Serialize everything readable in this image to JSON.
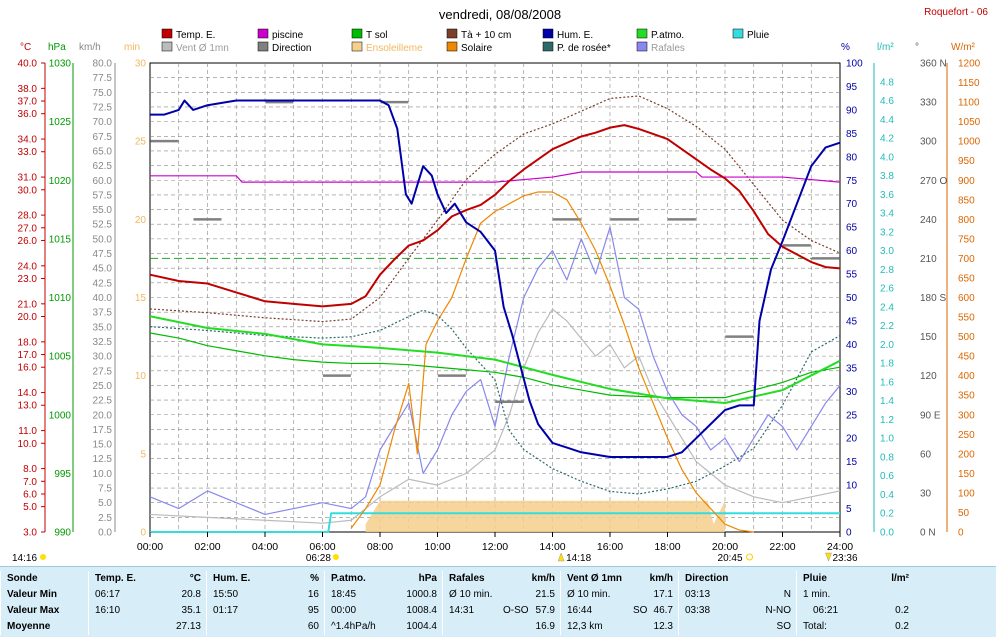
{
  "header": {
    "title": "vendredi, 08/08/2008",
    "station": "Roquefort - 06"
  },
  "legend": [
    {
      "label": "Temp. E.",
      "color": "#c00000"
    },
    {
      "label": "piscine",
      "color": "#cc00cc"
    },
    {
      "label": "T sol",
      "color": "#00bb00"
    },
    {
      "label": "Tà + 10 cm",
      "color": "#7b3f2a"
    },
    {
      "label": "Hum. E.",
      "color": "#0000aa"
    },
    {
      "label": "P.atmo.",
      "color": "#22dd22"
    },
    {
      "label": "Pluie",
      "color": "#33dddd"
    },
    {
      "label": "Vent Ø 1mn",
      "color": "#bbbbbb"
    },
    {
      "label": "Direction",
      "color": "#808080"
    },
    {
      "label": "Ensoleilleme",
      "color": "#f5cf8c"
    },
    {
      "label": "Solaire",
      "color": "#ee8800"
    },
    {
      "label": "P. de rosée*",
      "color": "#2d6a6a"
    },
    {
      "label": "Rafales",
      "color": "#8888ee"
    }
  ],
  "axis_units": {
    "temp": "°C",
    "press": "hPa",
    "wind": "km/h",
    "sun": "min",
    "hum": "%",
    "rain": "l/m²",
    "dir": "°",
    "solar": "W/m²"
  },
  "axes": {
    "temp_ticks": [
      "40.0",
      "38.0",
      "37.0",
      "36.0",
      "34.0",
      "33.0",
      "31.0",
      "30.0",
      "28.0",
      "27.0",
      "26.0",
      "24.0",
      "23.0",
      "21.0",
      "20.0",
      "18.0",
      "17.0",
      "16.0",
      "14.0",
      "13.0",
      "11.0",
      "10.0",
      "8.0",
      "7.0",
      "6.0",
      "5.0",
      "3.0"
    ],
    "press_ticks": [
      "1030",
      "1025",
      "1020",
      "1015",
      "1010",
      "1005",
      "1000",
      "995",
      "990"
    ],
    "wind_ticks": [
      "80.0",
      "77.5",
      "75.0",
      "72.5",
      "70.0",
      "67.5",
      "65.0",
      "62.5",
      "60.0",
      "57.5",
      "55.0",
      "52.5",
      "50.0",
      "47.5",
      "45.0",
      "42.5",
      "40.0",
      "37.5",
      "35.0",
      "32.5",
      "30.0",
      "27.5",
      "25.0",
      "22.5",
      "20.0",
      "17.5",
      "15.0",
      "12.5",
      "10.0",
      "7.5",
      "5.0",
      "2.5",
      "0.0"
    ],
    "sun_ticks": [
      "30",
      "25",
      "20",
      "15",
      "10",
      "5",
      "0"
    ],
    "hum_ticks": [
      "100",
      "95",
      "90",
      "85",
      "80",
      "75",
      "70",
      "65",
      "60",
      "55",
      "50",
      "45",
      "40",
      "35",
      "30",
      "25",
      "20",
      "15",
      "10",
      "5",
      "0"
    ],
    "rain_ticks": [
      "4.8",
      "4.6",
      "4.4",
      "4.2",
      "4.0",
      "3.8",
      "3.6",
      "3.4",
      "3.2",
      "3.0",
      "2.8",
      "2.6",
      "2.4",
      "2.2",
      "2.0",
      "1.8",
      "1.6",
      "1.4",
      "1.2",
      "1.0",
      "0.8",
      "0.6",
      "0.4",
      "0.2",
      "0.0"
    ],
    "dir_ticks": [
      "360 N",
      "330",
      "300",
      "270 O",
      "240",
      "210",
      "180 S",
      "150",
      "120",
      "90 E",
      "60",
      "30",
      "0 N"
    ],
    "solar_ticks": [
      "1200",
      "1150",
      "1100",
      "1050",
      "1000",
      "950",
      "900",
      "850",
      "800",
      "750",
      "700",
      "650",
      "600",
      "550",
      "500",
      "450",
      "400",
      "350",
      "300",
      "250",
      "200",
      "150",
      "100",
      "50",
      "0"
    ],
    "x_ticks": [
      "00:00",
      "02:00",
      "04:00",
      "06:00",
      "08:00",
      "10:00",
      "12:00",
      "14:00",
      "16:00",
      "18:00",
      "20:00",
      "22:00",
      "24:00"
    ]
  },
  "sun_events": {
    "sunrise": "06:28",
    "sunset": "20:45",
    "moonrise": "14:16",
    "moonset": "23:36",
    "transit": "14:18"
  },
  "chart_data": {
    "type": "line",
    "title": "vendredi, 08/08/2008",
    "x_unit": "hours",
    "xlim": [
      0,
      24
    ],
    "series": [
      {
        "name": "Temp. E.",
        "unit": "°C",
        "color": "#c00000",
        "x": [
          0,
          1,
          2,
          3,
          4,
          5,
          6,
          7,
          7.5,
          8,
          8.5,
          9,
          9.5,
          10,
          10.5,
          11,
          11.5,
          12,
          12.5,
          13,
          13.5,
          14,
          14.5,
          15,
          15.5,
          16,
          16.5,
          17,
          17.5,
          18,
          18.5,
          19,
          19.5,
          20,
          20.5,
          21,
          21.5,
          22,
          22.5,
          23,
          23.5,
          24
        ],
        "y": [
          23.3,
          22.8,
          22.6,
          21.9,
          21.2,
          21.0,
          20.8,
          21.0,
          21.6,
          23.3,
          24.5,
          25.6,
          26.0,
          26.8,
          27.9,
          28.4,
          28.8,
          29.6,
          30.7,
          31.6,
          32.4,
          33.2,
          33.7,
          34.2,
          34.5,
          34.9,
          35.1,
          34.8,
          34.4,
          34.0,
          33.2,
          32.4,
          31.6,
          30.9,
          29.9,
          28.3,
          26.5,
          25.5,
          24.9,
          24.3,
          23.9,
          23.8
        ]
      },
      {
        "name": "piscine",
        "unit": "°C",
        "color": "#cc00cc",
        "x": [
          0,
          3,
          3.2,
          8,
          10,
          12,
          14,
          15,
          19,
          19.2,
          22,
          24
        ],
        "y": [
          31.1,
          31.1,
          30.6,
          30.6,
          30.6,
          30.6,
          31.0,
          31.4,
          31.4,
          31.0,
          31.0,
          30.6
        ]
      },
      {
        "name": "T sol",
        "unit": "°C",
        "color": "#00bb00",
        "x": [
          0,
          1,
          2,
          3,
          4,
          5,
          6,
          7,
          8,
          9,
          10,
          11,
          12,
          13,
          14,
          15,
          16,
          17,
          18,
          19,
          20,
          21,
          22,
          23,
          24
        ],
        "y": [
          18.7,
          18.3,
          17.7,
          17.3,
          16.9,
          16.6,
          16.4,
          16.3,
          16.3,
          16.2,
          16.0,
          15.8,
          15.6,
          15.2,
          14.6,
          14.2,
          13.8,
          13.7,
          13.6,
          13.6,
          13.6,
          14.2,
          14.8,
          15.6,
          16.0
        ]
      },
      {
        "name": "Tà + 10 cm",
        "unit": "°C",
        "color": "#7b3f2a",
        "x": [
          0,
          2,
          4,
          6,
          7,
          8,
          9,
          10,
          11,
          12,
          13,
          14,
          15,
          16,
          17,
          18,
          19,
          20,
          21,
          22,
          23,
          24
        ],
        "y": [
          20.6,
          20.3,
          19.9,
          19.6,
          19.8,
          21.5,
          24.6,
          27.6,
          30.8,
          32.8,
          34.4,
          35.2,
          36.2,
          37.2,
          37.4,
          36.4,
          35.0,
          33.2,
          30.4,
          27.6,
          26.0,
          25.0
        ]
      },
      {
        "name": "Hum. E.",
        "unit": "%",
        "color": "#0000aa",
        "x": [
          0,
          0.5,
          1,
          1.2,
          1.5,
          2,
          3,
          4,
          5,
          6,
          7,
          8,
          8.3,
          8.6,
          8.9,
          9.1,
          9.5,
          9.8,
          10,
          10.3,
          10.6,
          11,
          11.5,
          12,
          12.3,
          12.6,
          12.9,
          13.2,
          13.5,
          14,
          14.5,
          15,
          16,
          17,
          18,
          18.5,
          19,
          19.5,
          20,
          20.5,
          21,
          21.2,
          21.6,
          22,
          22.5,
          23,
          23.5,
          24
        ],
        "y": [
          89,
          89,
          90,
          92,
          90,
          91,
          92,
          92,
          92,
          92,
          92,
          92,
          91,
          86,
          72,
          70,
          78,
          76,
          72,
          68,
          70,
          66,
          64,
          60,
          48,
          42,
          35,
          28,
          23,
          19,
          18,
          17,
          16,
          16,
          16,
          17,
          20,
          23,
          26,
          27,
          27,
          45,
          56,
          62,
          70,
          78,
          82,
          83
        ]
      },
      {
        "name": "P.atmo.",
        "unit": "hPa",
        "color": "#22dd22",
        "x": [
          0,
          2,
          4,
          6,
          8,
          10,
          12,
          14,
          16,
          18,
          20,
          22,
          24
        ],
        "y": [
          1008.4,
          1007.4,
          1006.9,
          1006.0,
          1005.7,
          1005.3,
          1004.7,
          1003.4,
          1002.2,
          1001.4,
          1001.0,
          1002.1,
          1004.6
        ]
      },
      {
        "name": "P. de rosée*",
        "unit": "°C",
        "color": "#2d6a6a",
        "x": [
          0,
          2,
          4,
          6,
          7,
          8,
          9,
          9.5,
          10,
          10.5,
          11,
          12,
          12.5,
          13,
          14,
          15,
          16,
          17,
          18,
          19,
          20,
          21,
          22,
          23,
          24
        ],
        "y": [
          19.2,
          18.9,
          18.5,
          18.3,
          18.4,
          18.9,
          20.0,
          20.5,
          20.1,
          19.0,
          17.5,
          15.0,
          11.0,
          9.5,
          8.0,
          7.0,
          6.2,
          6.0,
          6.4,
          7.0,
          8.2,
          9.6,
          13.0,
          17.2,
          18.5
        ]
      },
      {
        "name": "Solaire",
        "unit": "W/m²",
        "color": "#ee8800",
        "x": [
          7,
          7.5,
          8,
          8.5,
          9,
          9.3,
          9.6,
          10,
          10.5,
          11,
          11.5,
          12,
          12.5,
          13,
          13.5,
          14,
          14.5,
          15,
          15.5,
          16,
          16.5,
          17,
          17.5,
          18,
          18.5,
          19,
          19.5,
          20,
          20.5,
          21
        ],
        "y": [
          10,
          60,
          120,
          260,
          380,
          200,
          480,
          540,
          600,
          700,
          790,
          820,
          840,
          860,
          870,
          870,
          850,
          790,
          720,
          630,
          530,
          420,
          330,
          240,
          160,
          100,
          60,
          20,
          5,
          0
        ]
      },
      {
        "name": "Rafales",
        "unit": "km/h",
        "color": "#8888ee",
        "x": [
          0,
          1,
          2,
          3,
          4,
          5,
          6,
          7,
          7.5,
          8,
          8.5,
          9,
          9.5,
          10,
          10.5,
          11,
          11.5,
          12,
          12.5,
          13,
          13.5,
          14,
          14.5,
          15,
          15.5,
          16,
          16.5,
          17,
          17.5,
          18,
          18.5,
          19,
          19.5,
          20,
          20.5,
          21,
          21.5,
          22,
          22.5,
          23,
          23.5,
          24
        ],
        "y": [
          6,
          4,
          7,
          5,
          3,
          4,
          5,
          4,
          6,
          14,
          18,
          22,
          10,
          14,
          20,
          24,
          26,
          18,
          30,
          40,
          45,
          48,
          43,
          50,
          44,
          52,
          40,
          38,
          30,
          24,
          20,
          18,
          14,
          16,
          12,
          16,
          20,
          18,
          14,
          18,
          22,
          25
        ]
      },
      {
        "name": "Vent Ø 1mn",
        "unit": "km/h",
        "color": "#bbbbbb",
        "x": [
          0,
          2,
          4,
          6,
          7,
          8,
          9,
          10,
          11,
          12,
          12.5,
          13,
          13.5,
          14,
          14.5,
          15,
          15.5,
          16,
          16.5,
          17,
          17.5,
          18,
          19,
          20,
          21,
          22,
          23,
          24
        ],
        "y": [
          3,
          2.5,
          2,
          1.5,
          2,
          6,
          9,
          8,
          10,
          14,
          20,
          28,
          34,
          38,
          36,
          33,
          30,
          32,
          28,
          30,
          24,
          20,
          12,
          8,
          6,
          5,
          6,
          7
        ]
      },
      {
        "name": "Direction",
        "unit": "°",
        "color": "#808080",
        "x": [
          0.5,
          2,
          4.5,
          6.5,
          8.5,
          10.5,
          12.5,
          14.5,
          16.5,
          18.5,
          20.5,
          22.5,
          23.5
        ],
        "y": [
          300,
          240,
          330,
          120,
          330,
          120,
          100,
          240,
          240,
          240,
          150,
          220,
          210
        ]
      },
      {
        "name": "Ensoleilleme",
        "unit": "min",
        "color": "#f5cf8c",
        "x": [
          7.5,
          8,
          9,
          10,
          11,
          12,
          13,
          14,
          15,
          16,
          17,
          18,
          19,
          19.4,
          19.6,
          20
        ],
        "y": [
          0.5,
          2,
          2,
          2,
          2,
          2,
          2,
          2,
          2,
          2,
          2,
          2,
          2,
          2,
          0.5,
          2
        ]
      },
      {
        "name": "Pluie",
        "unit": "l/m²",
        "color": "#33dddd",
        "x": [
          0,
          6.2,
          6.3,
          24
        ],
        "y": [
          0,
          0,
          0.2,
          0.2
        ]
      }
    ],
    "reference_line": {
      "value": 700,
      "unit": "W/m²",
      "color": "#22aa22"
    }
  },
  "stats": {
    "sonde": {
      "head": "Sonde",
      "r1": "Valeur Min",
      "r2": "Valeur Max",
      "r3": "Moyenne"
    },
    "temp": {
      "head": "Temp. E.",
      "unit": "°C",
      "min_time": "06:17",
      "min_val": "20.8",
      "max_time": "16:10",
      "max_val": "35.1",
      "avg": "27.13"
    },
    "hum": {
      "head": "Hum. E.",
      "unit": "%",
      "min_time": "15:50",
      "min_val": "16",
      "max_time": "01:17",
      "max_val": "95",
      "avg": "60"
    },
    "press": {
      "head": "P.atmo.",
      "unit": "hPa",
      "min_time": "18:45",
      "min_val": "1000.8",
      "max_time": "00:00",
      "max_val": "1008.4",
      "trend": "^1.4hPa/h",
      "avg": "1004.4"
    },
    "gust": {
      "head": "Rafales",
      "unit": "km/h",
      "r1_label": "Ø 10 min.",
      "r1_val": "21.5",
      "r2_time": "14:31",
      "r2_dir": "O-SO",
      "r2_val": "57.9",
      "r3_val": "16.9"
    },
    "wind": {
      "head": "Vent Ø 1mn",
      "unit": "km/h",
      "r1_label": "Ø 10 min.",
      "r1_val": "17.1",
      "r2_time": "16:44",
      "r2_dir": "SO",
      "r2_val": "46.7",
      "r3_dist": "12,3 km",
      "r3_val": "12.3"
    },
    "dir": {
      "head": "Direction",
      "r1_time": "03:13",
      "r1_val": "N",
      "r2_time": "03:38",
      "r2_val": "N-NO",
      "r3_val": "SO"
    },
    "rain": {
      "head": "Pluie",
      "unit": "l/m²",
      "r1_label": "1 min.",
      "r2_time": "06:21",
      "r2_val": "0.2",
      "r3_label": "Total:",
      "r3_val": "0.2"
    }
  }
}
